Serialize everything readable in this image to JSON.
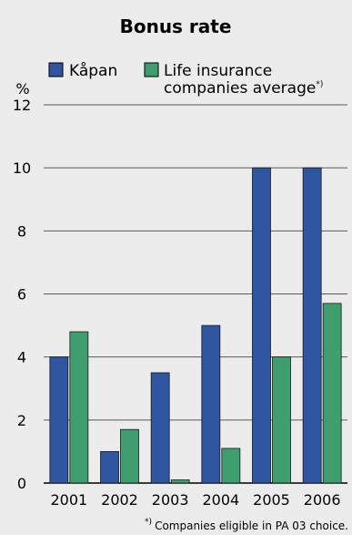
{
  "chart_data": {
    "type": "bar",
    "title": "Bonus rate",
    "ylabel": "%",
    "categories": [
      "2001",
      "2002",
      "2003",
      "2004",
      "2005",
      "2006"
    ],
    "series": [
      {
        "name": "Kåpan",
        "values": [
          4.0,
          1.0,
          3.5,
          5.0,
          10.0,
          10.0
        ],
        "color": "#2e55a0"
      },
      {
        "name_line1": "Life insurance",
        "name_line2": "companies average",
        "name_marker": "*)",
        "values": [
          4.8,
          1.7,
          0.1,
          1.1,
          4.0,
          5.7
        ],
        "color": "#3e9e6e"
      }
    ],
    "ylim": [
      0,
      12
    ],
    "yticks": [
      "0",
      "2",
      "4",
      "6",
      "8",
      "10",
      "12"
    ],
    "grid": true,
    "legend_position": "top",
    "footnote": "Companies eligible in PA 03 choice.",
    "footnote_marker": "*)"
  }
}
